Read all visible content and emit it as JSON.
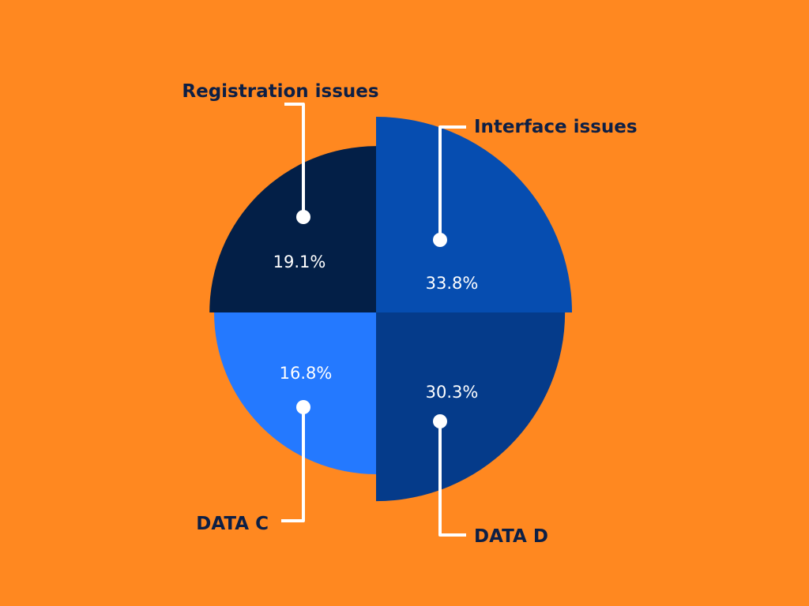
{
  "colors": {
    "background": "#FF8820",
    "label_text": "#0D1F45",
    "value_text": "#FFFFFF",
    "leader_line": "#FFFFFF"
  },
  "chart_data": {
    "type": "pie",
    "variant": "quadrant-radius",
    "title": "",
    "categories": [
      "Registration issues",
      "Interface issues",
      "DATA C",
      "DATA D"
    ],
    "values": [
      19.1,
      33.8,
      16.8,
      30.3
    ],
    "value_labels": [
      "19.1%",
      "33.8%",
      "16.8%",
      "30.3%"
    ],
    "unit": "%",
    "slice_colors": [
      "#031F47",
      "#064DB0",
      "#2479FF",
      "#053B8A"
    ],
    "legend": "none"
  }
}
